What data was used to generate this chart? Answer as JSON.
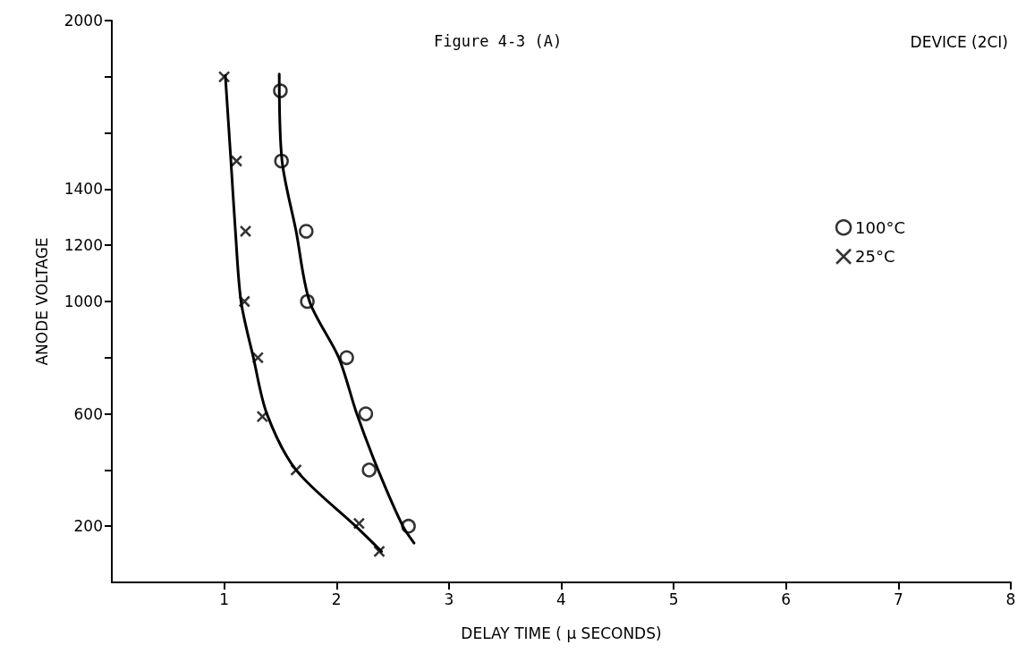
{
  "chart_data": {
    "type": "scatter",
    "title": "Figure 4-3 (A)",
    "annotations": [
      "DEVICE (2CI)"
    ],
    "xlabel": "DELAY TIME ( μ SECONDS)",
    "ylabel": "ANODE VOLTAGE",
    "xlim": [
      0,
      8
    ],
    "xticks": [
      1,
      2,
      3,
      4,
      5,
      6,
      7,
      8
    ],
    "ylim": [
      0,
      2000
    ],
    "yticks": [
      200,
      {
        "value": 400,
        "label": null
      },
      600,
      {
        "value": 800,
        "label": null
      },
      1000,
      1200,
      1400,
      {
        "value": 1600,
        "label": null
      },
      {
        "value": 1800,
        "label": null
      },
      2000
    ],
    "grid": false,
    "legend": "right",
    "series": [
      {
        "name": "100°C",
        "marker": "circle",
        "color": "#000000",
        "x": [
          1.5,
          1.51,
          1.73,
          1.74,
          2.09,
          2.26,
          2.29,
          2.64
        ],
        "values": [
          1750,
          1500,
          1250,
          1000,
          800,
          600,
          400,
          200
        ]
      },
      {
        "name": "25°C",
        "marker": "cross",
        "color": "#000000",
        "x": [
          1.0,
          1.11,
          1.19,
          1.18,
          1.3,
          1.34,
          1.64,
          2.2,
          2.38
        ],
        "values": [
          1800,
          1500,
          1250,
          1000,
          800,
          590,
          400,
          210,
          110
        ]
      },
      {
        "type": "line",
        "marker": "none",
        "color": "#000000",
        "x": [
          1.49,
          1.515,
          1.64,
          1.76,
          2.02,
          2.18,
          2.37,
          2.59,
          2.69
        ],
        "values": [
          1810,
          1500,
          1250,
          1000,
          800,
          600,
          400,
          200,
          140
        ]
      },
      {
        "type": "line",
        "marker": "none",
        "color": "#000000",
        "x": [
          1.01,
          1.06,
          1.1,
          1.15,
          1.26,
          1.38,
          1.64,
          2.17,
          2.4
        ],
        "values": [
          1805,
          1500,
          1250,
          1000,
          800,
          600,
          400,
          200,
          110
        ]
      }
    ]
  }
}
